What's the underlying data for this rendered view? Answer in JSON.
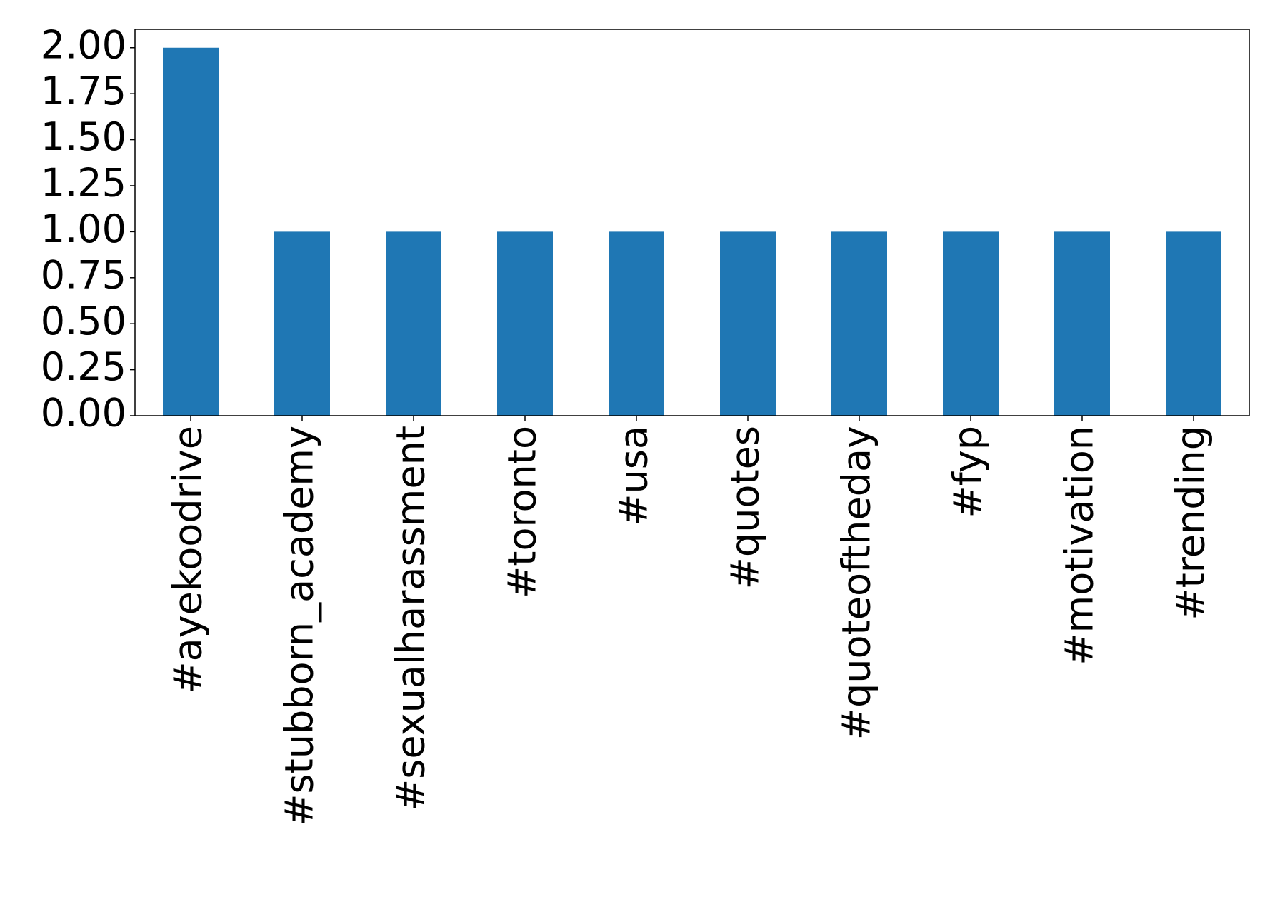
{
  "chart_data": {
    "type": "bar",
    "categories": [
      "#ayekoodrive",
      "#stubborn_academy",
      "#sexualharassment",
      "#toronto",
      "#usa",
      "#quotes",
      "#quoteoftheday",
      "#fyp",
      "#motivation",
      "#trending"
    ],
    "values": [
      2,
      1,
      1,
      1,
      1,
      1,
      1,
      1,
      1,
      1
    ],
    "color": "#1f77b4",
    "ylim": [
      0,
      2.1
    ],
    "yticks": [
      {
        "value": 0,
        "label": "0.00"
      },
      {
        "value": 0.25,
        "label": "0.25"
      },
      {
        "value": 0.5,
        "label": "0.50"
      },
      {
        "value": 0.75,
        "label": "0.75"
      },
      {
        "value": 1,
        "label": "1.00"
      },
      {
        "value": 1.25,
        "label": "1.25"
      },
      {
        "value": 1.5,
        "label": "1.50"
      },
      {
        "value": 1.75,
        "label": "1.75"
      },
      {
        "value": 2,
        "label": "2.00"
      }
    ],
    "grid": false
  }
}
